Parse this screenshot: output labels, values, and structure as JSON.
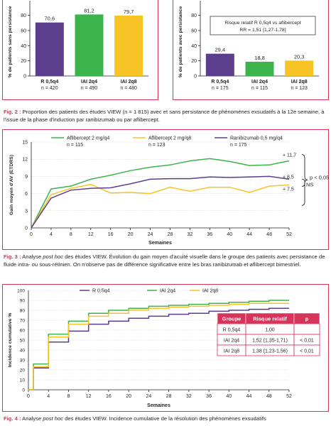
{
  "colors": {
    "accent": "#d6345b",
    "r_0_5q4": "#5b3f8c",
    "iai_2q4": "#3cb44b",
    "iai_2q8": "#f7c325",
    "table_header": "#d6345b"
  },
  "fig2": {
    "caption": {
      "label": "Fig. 2 :",
      "text": " Proportion des patients des études VIEW (n = 1 815) avec et sans persistance de phénomènes exsudatifs à la 12e semaine, à l'issue de la phase d'induction par ranibizumab ou par aflibercept."
    }
  },
  "fig3": {
    "caption": {
      "label": "Fig. 3 :",
      "t1": " Analyse ",
      "italic": "post hoc",
      "t2": " des études VIEW. Évolution du gain moyen d'acuité visuelle dans le groupe des patients avec persistance de fluide intra- ou sous-rétinien. On n'observe pas de différence significative entre les bras ranibizumab et aflibercept bimestriel."
    }
  },
  "fig4": {
    "caption": {
      "label": "Fig. 4 :",
      "t1": " Analyse ",
      "italic": "post hoc",
      "t2": " des études VIEW. Incidence cumulative de la résolution des phénomènes exsudatifs"
    },
    "table": {
      "headers": [
        "Groupe",
        "Risque relatif",
        "p"
      ],
      "rows": [
        [
          "R 0,5q4",
          "1,00",
          ""
        ],
        [
          "IAI 2q4",
          "1,52 (1,35-1,71)",
          "< 0,01"
        ],
        [
          "IAI 2q8",
          "1,38 (1,23-1,56)",
          "< 0,01"
        ]
      ]
    }
  },
  "chart_data": [
    {
      "type": "bar",
      "ylabel": "% de patients sans persistance",
      "yticks": [
        0,
        20,
        40,
        60,
        80
      ],
      "ylim": [
        0,
        90
      ],
      "categories": [
        "R 0,5q4",
        "IAI 2q4",
        "IAI 2q8"
      ],
      "n_labels": [
        "n = 420",
        "n = 490",
        "n = 480"
      ],
      "values": [
        70.6,
        81.2,
        79.7
      ],
      "value_labels": [
        "70,6",
        "81,2",
        "79,7"
      ],
      "colors": [
        "#5b3f8c",
        "#3cb44b",
        "#f7c325"
      ]
    },
    {
      "type": "bar",
      "ylabel": "% de patients avec persistance",
      "yticks": [
        0,
        20,
        40,
        60,
        80
      ],
      "ylim": [
        0,
        90
      ],
      "categories": [
        "R 0,5q4",
        "IAI 2q4",
        "IAI 2q8"
      ],
      "n_labels": [
        "n = 175",
        "n = 115",
        "n = 123"
      ],
      "values": [
        29.4,
        18.8,
        20.3
      ],
      "value_labels": [
        "29,4",
        "18,8",
        "20,3"
      ],
      "colors": [
        "#5b3f8c",
        "#3cb44b",
        "#f7c325"
      ],
      "annotation": [
        "Risque relatif R 0,5q4 vs aflibercept",
        "RR = 1,51 [1,27-1,78]"
      ]
    },
    {
      "type": "line",
      "xlabel": "Semaines",
      "ylabel": "Gain moyen d'AV (ETDRS)",
      "xlim": [
        0,
        52
      ],
      "ylim": [
        0,
        15
      ],
      "xticks": [
        0,
        4,
        8,
        12,
        16,
        20,
        24,
        28,
        32,
        36,
        40,
        44,
        48,
        52
      ],
      "yticks": [
        0,
        3,
        6,
        9,
        12,
        15
      ],
      "x": [
        0,
        4,
        8,
        12,
        16,
        20,
        24,
        28,
        32,
        36,
        40,
        44,
        48,
        52
      ],
      "series": [
        {
          "name": "Aflibercept 2 mg/q4",
          "n_label": "n = 115",
          "color": "#3cb44b",
          "values": [
            0,
            6.8,
            7.3,
            8.5,
            9.2,
            10.0,
            10.6,
            11.0,
            11.7,
            12.1,
            11.6,
            10.9,
            11.0,
            11.7
          ]
        },
        {
          "name": "Aflibercept 2 mg/q8",
          "n_label": "n = 123",
          "color": "#f7c325",
          "values": [
            0,
            5.8,
            6.9,
            7.6,
            6.1,
            6.2,
            6.0,
            7.1,
            6.4,
            7.1,
            7.1,
            6.2,
            7.3,
            7.5
          ]
        },
        {
          "name": "Ranibizumab 0,5 mg/q4",
          "n_label": "n = 175",
          "color": "#5b3f8c",
          "values": [
            0,
            5.2,
            6.6,
            6.9,
            7.0,
            7.7,
            8.5,
            8.6,
            8.6,
            8.9,
            8.8,
            8.9,
            9.0,
            8.5
          ]
        }
      ],
      "end_labels": [
        "+ 11,7",
        "+ 8,5",
        "+ 7,5"
      ],
      "annotations": [
        "p < 0,05",
        "NS"
      ]
    },
    {
      "type": "line",
      "step": true,
      "xlabel": "Semaines",
      "ylabel": "Incidence cumulative %",
      "xlim": [
        0,
        52
      ],
      "ylim": [
        0,
        100
      ],
      "xticks": [
        0,
        4,
        8,
        12,
        16,
        20,
        24,
        28,
        32,
        36,
        40,
        44,
        48,
        52
      ],
      "yticks": [
        0,
        10,
        20,
        30,
        40,
        50,
        60,
        70,
        80,
        90,
        100
      ],
      "x": [
        0,
        1,
        4,
        8,
        12,
        16,
        20,
        24,
        28,
        32,
        36,
        40,
        44,
        48,
        52
      ],
      "series": [
        {
          "name": "R 0,5q4",
          "color": "#5b3f8c",
          "values": [
            0,
            22,
            48,
            59,
            66,
            69,
            72,
            74,
            76,
            77,
            79,
            80,
            81,
            82,
            82
          ]
        },
        {
          "name": "IAI 2q4",
          "color": "#3cb44b",
          "values": [
            0,
            26,
            56,
            69,
            77,
            80,
            82,
            84,
            85,
            86,
            87,
            88,
            89,
            90,
            90
          ]
        },
        {
          "name": "IAI 2q8",
          "color": "#f7c325",
          "values": [
            0,
            23,
            53,
            66,
            74,
            77,
            80,
            82,
            83,
            84,
            85,
            86,
            87,
            87,
            87
          ]
        }
      ]
    }
  ]
}
